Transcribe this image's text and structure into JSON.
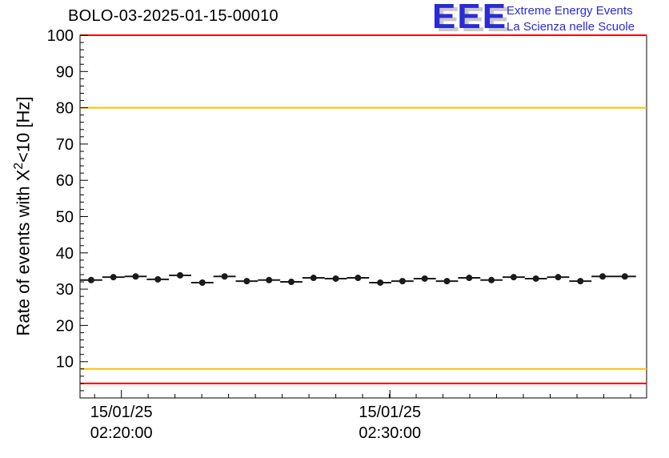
{
  "header": {
    "title": "BOLO-03-2025-01-15-00010",
    "logo": {
      "text": "EEE",
      "line1": "Extreme Energy Events",
      "line2": "La Scienza nelle Scuole",
      "blue": "#2b2bd5",
      "shadow": "#c9c9c9"
    }
  },
  "chart_data": {
    "type": "scatter",
    "title": "BOLO-03-2025-01-15-00010",
    "ylabel_parts": {
      "pre": "Rate of events with X",
      "sup": "2",
      "post": "<10 [Hz]"
    },
    "ylim": [
      0,
      100
    ],
    "y_major_step": 10,
    "y_minor_step": 2,
    "y_tick_labels": [
      10,
      20,
      30,
      40,
      50,
      60,
      70,
      80,
      90,
      100
    ],
    "x_ticks": [
      {
        "frac": 0.073,
        "date": "15/01/25",
        "time": "02:20:00"
      },
      {
        "frac": 0.547,
        "date": "15/01/25",
        "time": "02:30:00"
      }
    ],
    "x_minor_frac_step": 0.0473,
    "grid": false,
    "hlines": [
      {
        "y": 100,
        "color": "#ff0000"
      },
      {
        "y": 80,
        "color": "#ffc000"
      },
      {
        "y": 8,
        "color": "#ffc000"
      },
      {
        "y": 4,
        "color": "#ff0000"
      }
    ],
    "points": {
      "bin_frac": 0.03925,
      "color": "#1a1a1a",
      "y": [
        32.5,
        33.3,
        33.5,
        32.7,
        33.8,
        31.8,
        33.5,
        32.2,
        32.5,
        32.0,
        33.1,
        32.9,
        33.1,
        31.8,
        32.2,
        32.9,
        32.2,
        33.1,
        32.5,
        33.3,
        32.9,
        33.3,
        32.2,
        33.5,
        33.5
      ]
    }
  }
}
